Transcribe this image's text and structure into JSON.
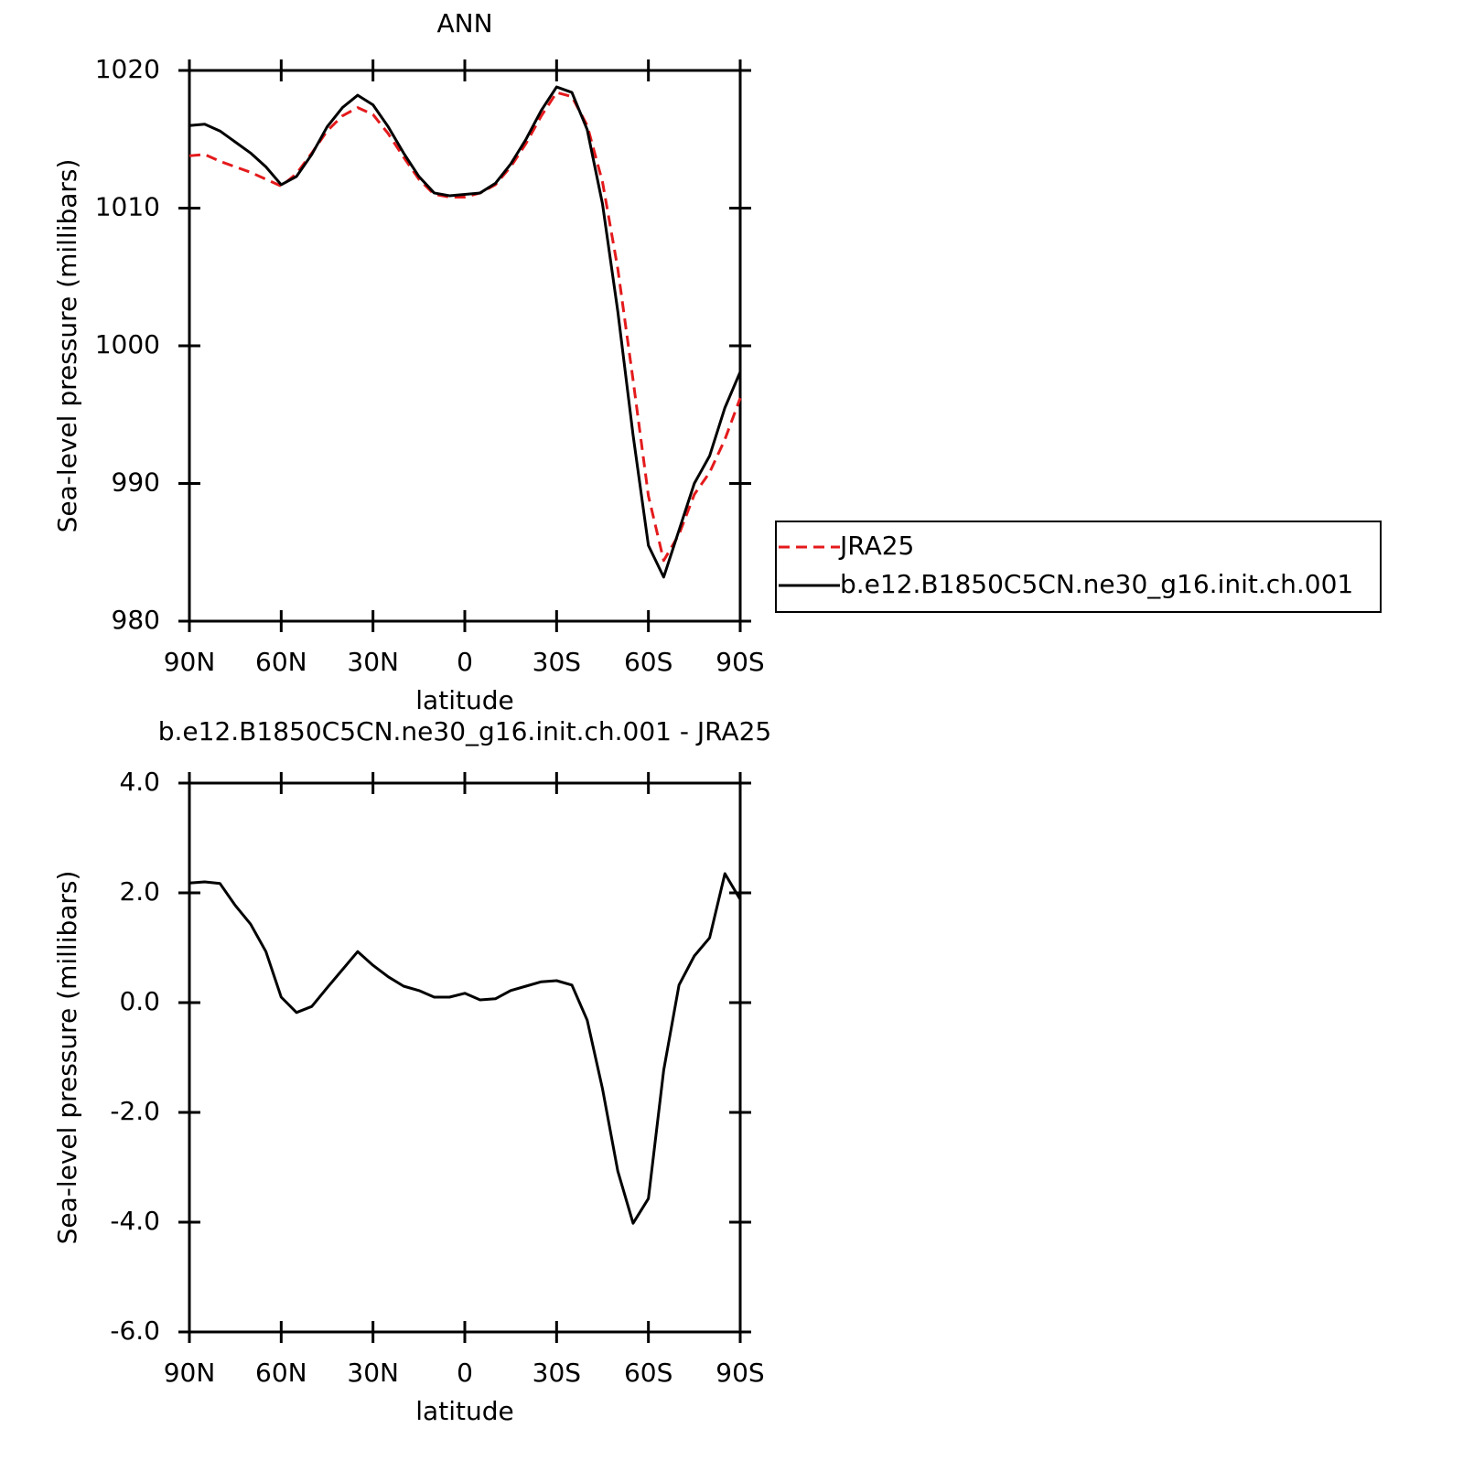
{
  "chart_data": [
    {
      "type": "line",
      "title": "ANN",
      "xlabel": "latitude",
      "ylabel": "Sea-level pressure (millibars)",
      "x": [
        90,
        85,
        80,
        75,
        70,
        65,
        60,
        55,
        50,
        45,
        40,
        35,
        30,
        25,
        20,
        15,
        10,
        5,
        0,
        -5,
        -10,
        -15,
        -20,
        -25,
        -30,
        -35,
        -40,
        -45,
        -50,
        -55,
        -60,
        -65,
        -70,
        -75,
        -80,
        -85,
        -90
      ],
      "series": [
        {
          "name": "JRA25",
          "color": "#e41a1c",
          "style": "dashed",
          "values": [
            1013.8,
            1013.9,
            1013.4,
            1013.0,
            1012.6,
            1012.1,
            1011.6,
            1012.5,
            1014.0,
            1015.6,
            1016.7,
            1017.3,
            1016.8,
            1015.4,
            1013.7,
            1012.1,
            1011.0,
            1010.8,
            1010.8,
            1011.1,
            1011.7,
            1013.0,
            1014.7,
            1016.7,
            1018.4,
            1018.1,
            1016.0,
            1011.9,
            1005.6,
            997.5,
            989.1,
            984.4,
            986.3,
            989.2,
            990.8,
            993.2,
            996.2
          ]
        },
        {
          "name": "b.e12.B1850C5CN.ne30_g16.init.ch.001",
          "color": "#000000",
          "style": "solid",
          "values": [
            1016.0,
            1016.1,
            1015.6,
            1014.8,
            1014.0,
            1013.0,
            1011.7,
            1012.3,
            1013.9,
            1015.9,
            1017.3,
            1018.2,
            1017.5,
            1015.9,
            1014.0,
            1012.3,
            1011.1,
            1010.9,
            1011.0,
            1011.1,
            1011.8,
            1013.2,
            1015.0,
            1017.1,
            1018.8,
            1018.4,
            1015.7,
            1010.3,
            1002.5,
            993.5,
            985.5,
            983.2,
            986.6,
            990.0,
            992.0,
            995.5,
            998.1
          ]
        }
      ],
      "xlim": [
        90,
        -90
      ],
      "xticks": [
        {
          "value": 90,
          "label": "90N"
        },
        {
          "value": 60,
          "label": "60N"
        },
        {
          "value": 30,
          "label": "30N"
        },
        0,
        {
          "value": -30,
          "label": "30S"
        },
        {
          "value": -60,
          "label": "60S"
        },
        {
          "value": -90,
          "label": "90S"
        }
      ],
      "ylim": [
        980,
        1020
      ],
      "yticks": [
        980,
        990,
        1000,
        1010,
        1020
      ],
      "legend": "right"
    },
    {
      "type": "line",
      "title": "b.e12.B1850C5CN.ne30_g16.init.ch.001 - JRA25",
      "xlabel": "latitude",
      "ylabel": "Sea-level pressure (millibars)",
      "x": [
        90,
        85,
        80,
        75,
        70,
        65,
        60,
        55,
        50,
        45,
        40,
        35,
        30,
        25,
        20,
        15,
        10,
        5,
        0,
        -5,
        -10,
        -15,
        -20,
        -25,
        -30,
        -35,
        -40,
        -45,
        -50,
        -55,
        -60,
        -65,
        -70,
        -75,
        -80,
        -85,
        -90
      ],
      "color": "#000000",
      "values": [
        2.18,
        2.2,
        2.17,
        1.77,
        1.43,
        0.93,
        0.1,
        -0.18,
        -0.07,
        0.27,
        0.6,
        0.93,
        0.68,
        0.47,
        0.3,
        0.22,
        0.1,
        0.1,
        0.17,
        0.05,
        0.07,
        0.22,
        0.3,
        0.38,
        0.4,
        0.32,
        -0.32,
        -1.57,
        -3.07,
        -4.02,
        -3.57,
        -1.23,
        0.32,
        0.85,
        1.18,
        2.35,
        1.88
      ],
      "xlim": [
        90,
        -90
      ],
      "xticks": [
        {
          "value": 90,
          "label": "90N"
        },
        {
          "value": 60,
          "label": "60N"
        },
        {
          "value": 30,
          "label": "30N"
        },
        0,
        {
          "value": -30,
          "label": "30S"
        },
        {
          "value": -60,
          "label": "60S"
        },
        {
          "value": -90,
          "label": "90S"
        }
      ],
      "ylim": [
        -6,
        4
      ],
      "yticks": [
        {
          "value": -6,
          "label": "-6.0"
        },
        {
          "value": -4,
          "label": "-4.0"
        },
        {
          "value": -2,
          "label": "-2.0"
        },
        {
          "value": 0,
          "label": "0.0"
        },
        {
          "value": 2,
          "label": "2.0"
        },
        {
          "value": 4,
          "label": "4.0"
        }
      ]
    }
  ]
}
